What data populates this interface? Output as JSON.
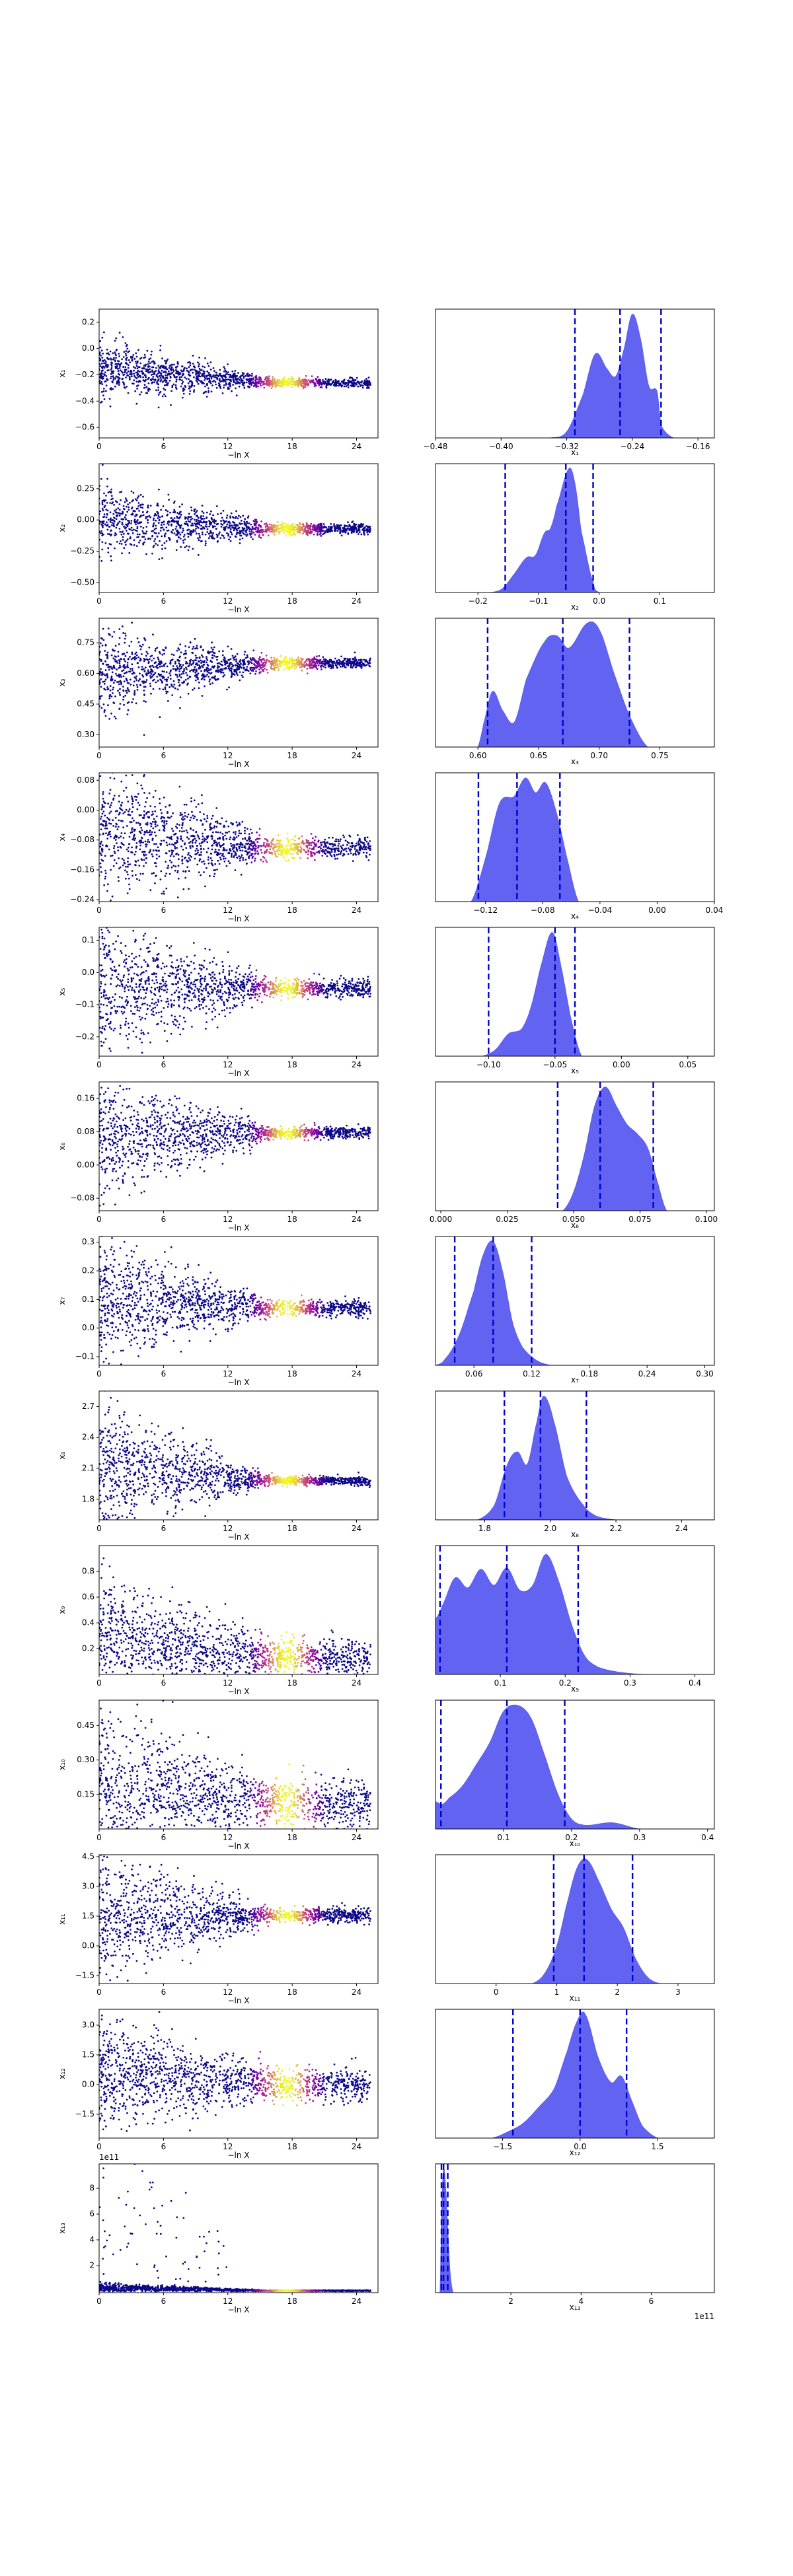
{
  "figure": {
    "type": "dynesty-style trace plot",
    "rows": 13,
    "colors": {
      "trace_low": "#0d0887",
      "trace_mid": "#7e03a8",
      "trace_high": "#cc4778",
      "trace_top": "#f0f921",
      "posterior_fill": "#5a5cf0",
      "quantile_line": "#0000cc"
    }
  },
  "chart_data": [
    {
      "type": "scatter",
      "title": "",
      "xlabel": "−ln X",
      "ylabel": "x₁",
      "xlim": [
        0,
        26
      ],
      "ylim": [
        -0.68,
        0.3
      ],
      "xticks": [
        "0",
        "6",
        "12",
        "18",
        "24"
      ],
      "yticks": [
        "0.2",
        "0.0",
        "−0.2",
        "−0.4",
        "−0.6"
      ],
      "ytick_values": [
        0.2,
        0.0,
        -0.2,
        -0.4,
        -0.6
      ],
      "offset": "",
      "trend": {
        "start_mean": -0.15,
        "end_mean": -0.26,
        "start_spread": 0.32,
        "end_spread": 0.05
      }
    },
    {
      "type": "area",
      "title": "",
      "xlabel": "x₁",
      "xlim": [
        -0.48,
        -0.14
      ],
      "xticks": [
        "−0.48",
        "−0.40",
        "−0.32",
        "−0.24",
        "−0.16"
      ],
      "xtick_values": [
        -0.48,
        -0.4,
        -0.32,
        -0.24,
        -0.16
      ],
      "quantiles": [
        -0.31,
        -0.255,
        -0.205
      ],
      "density_x": [
        -0.48,
        -0.34,
        -0.32,
        -0.3,
        -0.285,
        -0.27,
        -0.26,
        -0.25,
        -0.24,
        -0.23,
        -0.22,
        -0.21,
        -0.205,
        -0.19,
        -0.14
      ],
      "density_y": [
        0,
        0,
        0.05,
        0.35,
        0.68,
        0.55,
        0.5,
        0.72,
        1.0,
        0.8,
        0.42,
        0.38,
        0.1,
        0,
        0
      ]
    },
    {
      "type": "scatter",
      "title": "",
      "xlabel": "−ln X",
      "ylabel": "x₂",
      "xlim": [
        0,
        26
      ],
      "ylim": [
        -0.58,
        0.45
      ],
      "xticks": [
        "0",
        "6",
        "12",
        "18",
        "24"
      ],
      "yticks": [
        "0.25",
        "0.00",
        "−0.25",
        "−0.50"
      ],
      "ytick_values": [
        0.25,
        0.0,
        -0.25,
        -0.5
      ],
      "offset": "",
      "trend": {
        "start_mean": 0.0,
        "end_mean": -0.07,
        "start_spread": 0.42,
        "end_spread": 0.06
      }
    },
    {
      "type": "area",
      "title": "",
      "xlabel": "x₂",
      "xlim": [
        -0.27,
        0.19
      ],
      "xticks": [
        "−0.2",
        "−0.1",
        "0.0",
        "0.1"
      ],
      "xtick_values": [
        -0.2,
        -0.1,
        0.0,
        0.1
      ],
      "quantiles": [
        -0.155,
        -0.055,
        -0.01
      ],
      "density_x": [
        -0.27,
        -0.18,
        -0.16,
        -0.14,
        -0.12,
        -0.105,
        -0.09,
        -0.08,
        -0.07,
        -0.05,
        -0.04,
        -0.03,
        -0.01,
        0.0,
        0.19
      ],
      "density_y": [
        0,
        0,
        0.03,
        0.15,
        0.28,
        0.3,
        0.48,
        0.52,
        0.7,
        1.0,
        0.88,
        0.5,
        0.08,
        0,
        0
      ]
    },
    {
      "type": "scatter",
      "title": "",
      "xlabel": "−ln X",
      "ylabel": "x₃",
      "xlim": [
        0,
        26
      ],
      "ylim": [
        0.24,
        0.87
      ],
      "xticks": [
        "0",
        "6",
        "12",
        "18",
        "24"
      ],
      "yticks": [
        "0.75",
        "0.60",
        "0.45",
        "0.30"
      ],
      "ytick_values": [
        0.75,
        0.6,
        0.45,
        0.3
      ],
      "offset": "",
      "trend": {
        "start_mean": 0.6,
        "end_mean": 0.65,
        "start_spread": 0.3,
        "end_spread": 0.04
      }
    },
    {
      "type": "area",
      "title": "",
      "xlabel": "x₃",
      "xlim": [
        0.565,
        0.795
      ],
      "xticks": [
        "0.60",
        "0.65",
        "0.70",
        "0.75"
      ],
      "xtick_values": [
        0.6,
        0.65,
        0.7,
        0.75
      ],
      "quantiles": [
        0.608,
        0.67,
        0.725
      ],
      "density_x": [
        0.565,
        0.6,
        0.605,
        0.612,
        0.62,
        0.63,
        0.64,
        0.655,
        0.665,
        0.675,
        0.69,
        0.7,
        0.712,
        0.725,
        0.74,
        0.795
      ],
      "density_y": [
        0,
        0,
        0.2,
        0.45,
        0.3,
        0.2,
        0.55,
        0.85,
        0.9,
        0.8,
        1.0,
        0.95,
        0.6,
        0.25,
        0,
        0
      ]
    },
    {
      "type": "scatter",
      "title": "",
      "xlabel": "−ln X",
      "ylabel": "x₄",
      "xlim": [
        0,
        26
      ],
      "ylim": [
        -0.245,
        0.1
      ],
      "xticks": [
        "0",
        "6",
        "12",
        "18",
        "24"
      ],
      "yticks": [
        "0.08",
        "0.00",
        "−0.08",
        "−0.16",
        "−0.24"
      ],
      "ytick_values": [
        0.08,
        0.0,
        -0.08,
        -0.16,
        -0.24
      ],
      "offset": "",
      "trend": {
        "start_mean": -0.06,
        "end_mean": -0.1,
        "start_spread": 0.26,
        "end_spread": 0.04
      }
    },
    {
      "type": "area",
      "title": "",
      "xlabel": "x₄",
      "xlim": [
        -0.155,
        0.04
      ],
      "xticks": [
        "−0.12",
        "−0.08",
        "−0.04",
        "0.00",
        "0.04"
      ],
      "xtick_values": [
        -0.12,
        -0.08,
        -0.04,
        0.0,
        0.04
      ],
      "quantiles": [
        -0.125,
        -0.098,
        -0.068
      ],
      "density_x": [
        -0.155,
        -0.13,
        -0.12,
        -0.11,
        -0.1,
        -0.092,
        -0.085,
        -0.078,
        -0.07,
        -0.062,
        -0.055,
        0.04
      ],
      "density_y": [
        0,
        0,
        0.35,
        0.8,
        0.85,
        1.0,
        0.88,
        0.96,
        0.7,
        0.3,
        0,
        0
      ]
    },
    {
      "type": "scatter",
      "title": "",
      "xlabel": "−ln X",
      "ylabel": "x₅",
      "xlim": [
        0,
        26
      ],
      "ylim": [
        -0.26,
        0.14
      ],
      "xticks": [
        "0",
        "6",
        "12",
        "18",
        "24"
      ],
      "yticks": [
        "0.1",
        "0.0",
        "−0.1",
        "−0.2"
      ],
      "ytick_values": [
        0.1,
        0.0,
        -0.1,
        -0.2
      ],
      "offset": "",
      "trend": {
        "start_mean": -0.04,
        "end_mean": -0.05,
        "start_spread": 0.3,
        "end_spread": 0.04
      }
    },
    {
      "type": "area",
      "title": "",
      "xlabel": "x₅",
      "xlim": [
        -0.14,
        0.07
      ],
      "xticks": [
        "−0.10",
        "−0.05",
        "0.00",
        "0.05"
      ],
      "xtick_values": [
        -0.1,
        -0.05,
        0.0,
        0.05
      ],
      "quantiles": [
        -0.1,
        -0.05,
        -0.035
      ],
      "density_x": [
        -0.14,
        -0.105,
        -0.095,
        -0.085,
        -0.075,
        -0.068,
        -0.06,
        -0.052,
        -0.045,
        -0.038,
        -0.03,
        0.07
      ],
      "density_y": [
        0,
        0,
        0.05,
        0.18,
        0.22,
        0.4,
        0.75,
        1.0,
        0.7,
        0.3,
        0,
        0
      ]
    },
    {
      "type": "scatter",
      "title": "",
      "xlabel": "−ln X",
      "ylabel": "x₆",
      "xlim": [
        0,
        26
      ],
      "ylim": [
        -0.11,
        0.2
      ],
      "xticks": [
        "0",
        "6",
        "12",
        "18",
        "24"
      ],
      "yticks": [
        "0.16",
        "0.08",
        "0.00",
        "−0.08"
      ],
      "ytick_values": [
        0.16,
        0.08,
        0.0,
        -0.08
      ],
      "offset": "",
      "trend": {
        "start_mean": 0.06,
        "end_mean": 0.078,
        "start_spread": 0.22,
        "end_spread": 0.02
      }
    },
    {
      "type": "area",
      "title": "",
      "xlabel": "x₆",
      "xlim": [
        -0.002,
        0.103
      ],
      "xticks": [
        "0.000",
        "0.025",
        "0.050",
        "0.075",
        "0.100"
      ],
      "xtick_values": [
        0,
        0.025,
        0.05,
        0.075,
        0.1
      ],
      "quantiles": [
        0.044,
        0.06,
        0.08
      ],
      "density_x": [
        -0.002,
        0.046,
        0.05,
        0.054,
        0.058,
        0.062,
        0.066,
        0.07,
        0.074,
        0.078,
        0.082,
        0.085,
        0.103
      ],
      "density_y": [
        0,
        0,
        0.15,
        0.45,
        0.85,
        1.0,
        0.85,
        0.7,
        0.62,
        0.5,
        0.2,
        0,
        0
      ]
    },
    {
      "type": "scatter",
      "title": "",
      "xlabel": "−ln X",
      "ylabel": "x₇",
      "xlim": [
        0,
        26
      ],
      "ylim": [
        -0.13,
        0.32
      ],
      "xticks": [
        "0",
        "6",
        "12",
        "18",
        "24"
      ],
      "yticks": [
        "0.3",
        "0.2",
        "0.1",
        "0.0",
        "−0.1"
      ],
      "ytick_values": [
        0.3,
        0.2,
        0.1,
        0.0,
        -0.1
      ],
      "offset": "",
      "trend": {
        "start_mean": 0.1,
        "end_mean": 0.07,
        "start_spread": 0.3,
        "end_spread": 0.04
      }
    },
    {
      "type": "area",
      "title": "",
      "xlabel": "x₇",
      "xlim": [
        0.02,
        0.31
      ],
      "xticks": [
        "0.06",
        "0.12",
        "0.18",
        "0.24",
        "0.30"
      ],
      "xtick_values": [
        0.06,
        0.12,
        0.18,
        0.24,
        0.3
      ],
      "quantiles": [
        0.04,
        0.08,
        0.12
      ],
      "density_x": [
        0.02,
        0.03,
        0.045,
        0.06,
        0.07,
        0.08,
        0.09,
        0.1,
        0.11,
        0.125,
        0.14,
        0.31
      ],
      "density_y": [
        0,
        0.05,
        0.25,
        0.6,
        0.9,
        1.0,
        0.75,
        0.35,
        0.15,
        0.04,
        0,
        0
      ]
    },
    {
      "type": "scatter",
      "title": "",
      "xlabel": "−ln X",
      "ylabel": "x₈",
      "xlim": [
        0,
        26
      ],
      "ylim": [
        1.6,
        2.85
      ],
      "xticks": [
        "0",
        "6",
        "12",
        "18",
        "24"
      ],
      "yticks": [
        "2.7",
        "2.4",
        "2.1",
        "1.8"
      ],
      "ytick_values": [
        2.7,
        2.4,
        2.1,
        1.8
      ],
      "offset": "",
      "trend": {
        "start_mean": 2.1,
        "end_mean": 1.98,
        "start_spread": 0.9,
        "end_spread": 0.06
      }
    },
    {
      "type": "area",
      "title": "",
      "xlabel": "x₈",
      "xlim": [
        1.65,
        2.5
      ],
      "xticks": [
        "1.8",
        "2.0",
        "2.2",
        "2.4"
      ],
      "xtick_values": [
        1.8,
        2.0,
        2.2,
        2.4
      ],
      "quantiles": [
        1.86,
        1.97,
        2.11
      ],
      "density_x": [
        1.65,
        1.78,
        1.83,
        1.87,
        1.9,
        1.93,
        1.96,
        1.98,
        2.01,
        2.05,
        2.1,
        2.14,
        2.2,
        2.5
      ],
      "density_y": [
        0,
        0,
        0.12,
        0.45,
        0.55,
        0.45,
        0.8,
        1.0,
        0.8,
        0.35,
        0.12,
        0.03,
        0,
        0
      ]
    },
    {
      "type": "scatter",
      "title": "",
      "xlabel": "−ln X",
      "ylabel": "x₉",
      "xlim": [
        0,
        26
      ],
      "ylim": [
        0,
        1.0
      ],
      "xticks": [
        "0",
        "6",
        "12",
        "18",
        "24"
      ],
      "yticks": [
        "0.8",
        "0.6",
        "0.4",
        "0.2"
      ],
      "ytick_values": [
        0.8,
        0.6,
        0.4,
        0.2
      ],
      "offset": "",
      "trend": {
        "start_mean": 0.3,
        "end_mean": 0.13,
        "start_spread": 0.65,
        "end_spread": 0.2
      }
    },
    {
      "type": "area",
      "title": "",
      "xlabel": "x₉",
      "xlim": [
        0,
        0.43
      ],
      "xticks": [
        "0.1",
        "0.2",
        "0.3",
        "0.4"
      ],
      "xtick_values": [
        0.1,
        0.2,
        0.3,
        0.4
      ],
      "quantiles": [
        0.007,
        0.11,
        0.22
      ],
      "density_x": [
        0,
        0.01,
        0.03,
        0.05,
        0.07,
        0.09,
        0.11,
        0.13,
        0.15,
        0.17,
        0.19,
        0.21,
        0.23,
        0.25,
        0.28,
        0.32,
        0.43
      ],
      "density_y": [
        0.45,
        0.55,
        0.78,
        0.7,
        0.85,
        0.72,
        0.86,
        0.68,
        0.72,
        0.97,
        0.75,
        0.4,
        0.15,
        0.06,
        0.02,
        0,
        0
      ]
    },
    {
      "type": "scatter",
      "title": "",
      "xlabel": "−ln X",
      "ylabel": "x₁₀",
      "xlim": [
        0,
        26
      ],
      "ylim": [
        0,
        0.56
      ],
      "xticks": [
        "0",
        "6",
        "12",
        "18",
        "24"
      ],
      "yticks": [
        "0.45",
        "0.30",
        "0.15"
      ],
      "ytick_values": [
        0.45,
        0.3,
        0.15
      ],
      "offset": "",
      "trend": {
        "start_mean": 0.2,
        "end_mean": 0.11,
        "start_spread": 0.45,
        "end_spread": 0.15
      }
    },
    {
      "type": "area",
      "title": "",
      "xlabel": "x₁₀",
      "xlim": [
        0,
        0.41
      ],
      "xticks": [
        "0.1",
        "0.2",
        "0.3",
        "0.4"
      ],
      "xtick_values": [
        0.1,
        0.2,
        0.3,
        0.4
      ],
      "quantiles": [
        0.008,
        0.105,
        0.19
      ],
      "density_x": [
        0,
        0.01,
        0.02,
        0.04,
        0.06,
        0.08,
        0.1,
        0.12,
        0.14,
        0.16,
        0.18,
        0.2,
        0.22,
        0.26,
        0.3,
        0.41
      ],
      "density_y": [
        0.22,
        0.2,
        0.25,
        0.35,
        0.52,
        0.7,
        0.95,
        1.0,
        0.9,
        0.6,
        0.28,
        0.08,
        0.03,
        0.05,
        0,
        0
      ]
    },
    {
      "type": "scatter",
      "title": "",
      "xlabel": "−ln X",
      "ylabel": "x₁₁",
      "xlim": [
        0,
        26
      ],
      "ylim": [
        -1.9,
        4.6
      ],
      "xticks": [
        "0",
        "6",
        "12",
        "18",
        "24"
      ],
      "yticks": [
        "4.5",
        "3.0",
        "1.5",
        "0.0",
        "−1.5"
      ],
      "ytick_values": [
        4.5,
        3.0,
        1.5,
        0.0,
        -1.5
      ],
      "offset": "",
      "trend": {
        "start_mean": 1.5,
        "end_mean": 1.55,
        "start_spread": 4.5,
        "end_spread": 0.5
      }
    },
    {
      "type": "area",
      "title": "",
      "xlabel": "x₁₁",
      "xlim": [
        -1.0,
        3.6
      ],
      "xticks": [
        "0",
        "1",
        "2",
        "3"
      ],
      "xtick_values": [
        0,
        1,
        2,
        3
      ],
      "quantiles": [
        0.95,
        1.45,
        2.25
      ],
      "density_x": [
        -1.0,
        0.6,
        0.8,
        1.0,
        1.2,
        1.35,
        1.5,
        1.7,
        1.9,
        2.1,
        2.3,
        2.5,
        2.7,
        3.6
      ],
      "density_y": [
        0,
        0,
        0.08,
        0.3,
        0.7,
        0.95,
        1.0,
        0.82,
        0.6,
        0.45,
        0.2,
        0.05,
        0,
        0
      ]
    },
    {
      "type": "scatter",
      "title": "",
      "xlabel": "−ln X",
      "ylabel": "x₁₂",
      "xlim": [
        0,
        26
      ],
      "ylim": [
        -2.7,
        3.8
      ],
      "xticks": [
        "0",
        "6",
        "12",
        "18",
        "24"
      ],
      "yticks": [
        "3.0",
        "1.5",
        "0.0",
        "−1.5"
      ],
      "ytick_values": [
        3.0,
        1.5,
        0.0,
        -1.5
      ],
      "offset": "",
      "trend": {
        "start_mean": 0.6,
        "end_mean": 0.0,
        "start_spread": 3.8,
        "end_spread": 1.2
      }
    },
    {
      "type": "area",
      "title": "",
      "xlabel": "x₁₂",
      "xlim": [
        -2.8,
        2.6
      ],
      "xticks": [
        "−1.5",
        "0.0",
        "1.5"
      ],
      "xtick_values": [
        -1.5,
        0.0,
        1.5
      ],
      "quantiles": [
        -1.3,
        0.0,
        0.9
      ],
      "density_x": [
        -2.8,
        -1.7,
        -1.4,
        -1.1,
        -0.8,
        -0.5,
        -0.25,
        -0.05,
        0.1,
        0.35,
        0.6,
        0.8,
        1.0,
        1.2,
        1.5,
        2.6
      ],
      "density_y": [
        0,
        0,
        0.05,
        0.12,
        0.25,
        0.4,
        0.7,
        0.95,
        1.0,
        0.65,
        0.45,
        0.5,
        0.3,
        0.1,
        0,
        0
      ]
    },
    {
      "type": "scatter",
      "title": "",
      "xlabel": "−ln X",
      "ylabel": "x₁₃",
      "xlim": [
        0,
        26
      ],
      "ylim": [
        -0.1,
        9.9
      ],
      "xticks": [
        "0",
        "6",
        "12",
        "18",
        "24"
      ],
      "yticks": [
        "8",
        "6",
        "4",
        "2"
      ],
      "ytick_values": [
        8,
        6,
        4,
        2
      ],
      "offset": "1e11",
      "trend": {
        "start_mean": 0.3,
        "end_mean": 0.05,
        "start_spread": 0.5,
        "end_spread": 0.05
      }
    },
    {
      "type": "area",
      "title": "",
      "xlabel": "x₁₃",
      "xlim": [
        -0.15,
        7.8
      ],
      "xticks": [
        "2",
        "4",
        "6"
      ],
      "xtick_values": [
        2,
        4,
        6
      ],
      "offset": "1e11",
      "quantiles": [
        0.02,
        0.08,
        0.2
      ],
      "density_x": [
        -0.15,
        -0.02,
        0.03,
        0.08,
        0.14,
        0.2,
        0.27,
        0.35,
        7.8
      ],
      "density_y": [
        0,
        0,
        0.7,
        1.0,
        0.85,
        0.5,
        0.15,
        0,
        0
      ]
    }
  ]
}
